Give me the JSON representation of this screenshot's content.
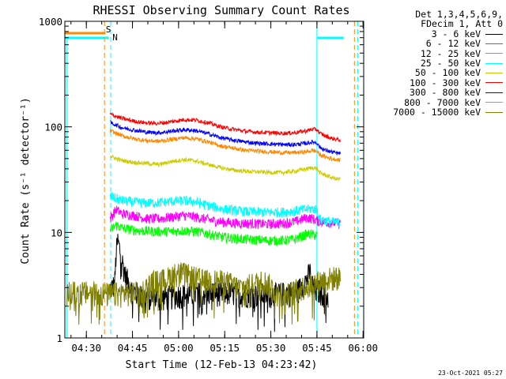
{
  "chart_data": {
    "type": "line",
    "title": "RHESSI Observing Summary Count Rates",
    "xlabel": "Start Time (12-Feb-13 04:23:42)",
    "ylabel": "Count Rate (s⁻¹ detector⁻¹)",
    "yscale": "log",
    "ylim": [
      1,
      1000
    ],
    "xlim_minutes": [
      -0.7,
      96.5
    ],
    "x_ticks": [
      {
        "label": "04:30",
        "min": 6.3
      },
      {
        "label": "04:45",
        "min": 21.3
      },
      {
        "label": "05:00",
        "min": 36.3
      },
      {
        "label": "05:15",
        "min": 51.3
      },
      {
        "label": "05:30",
        "min": 66.3
      },
      {
        "label": "05:45",
        "min": 81.3
      },
      {
        "label": "06:00",
        "min": 96.3
      }
    ],
    "y_ticks": [
      {
        "label": "1",
        "value": 1
      },
      {
        "label": "10",
        "value": 10
      },
      {
        "label": "100",
        "value": 100
      },
      {
        "label": "1000",
        "value": 1000
      }
    ],
    "legend_header": [
      "Det 1,3,4,5,6,9,",
      "FDecim 1, Att 0"
    ],
    "series": [
      {
        "name": "3 - 6 keV",
        "color": "#000000",
        "points": [
          [
            14,
            2.9
          ],
          [
            15.5,
            3.2
          ],
          [
            16,
            6.5
          ],
          [
            16.5,
            8.3
          ],
          [
            17.5,
            6.2
          ],
          [
            19,
            3.9
          ],
          [
            21,
            2.9
          ],
          [
            24,
            2.5
          ],
          [
            30,
            2.4
          ],
          [
            38,
            2.6
          ],
          [
            45,
            2.7
          ],
          [
            52,
            2.7
          ],
          [
            60,
            2.6
          ],
          [
            68,
            2.6
          ],
          [
            75,
            2.8
          ],
          [
            78,
            3.6
          ],
          [
            79,
            4.2
          ],
          [
            80.5,
            2.8
          ],
          [
            82,
            2.8
          ],
          [
            84,
            2.6
          ],
          [
            85,
            2.4
          ]
        ]
      },
      {
        "name": "6 - 12 keV",
        "color": "#ff00ff",
        "points": [
          [
            14,
            13.5
          ],
          [
            16,
            16.5
          ],
          [
            18,
            15
          ],
          [
            22,
            14.5
          ],
          [
            26,
            13.5
          ],
          [
            30,
            13.5
          ],
          [
            34,
            14
          ],
          [
            38,
            14.5
          ],
          [
            42,
            14
          ],
          [
            46,
            13.2
          ],
          [
            50,
            12.6
          ],
          [
            54,
            12.3
          ],
          [
            58,
            12.2
          ],
          [
            62,
            12.1
          ],
          [
            66,
            12
          ],
          [
            70,
            12.2
          ],
          [
            74,
            12.6
          ],
          [
            78,
            13.8
          ],
          [
            80,
            13.5
          ],
          [
            81.5,
            12.8
          ],
          [
            82,
            12.8
          ],
          [
            84,
            12.5
          ],
          [
            86,
            12.4
          ],
          [
            88,
            12.3
          ],
          [
            89,
            12.2
          ]
        ]
      },
      {
        "name": "12 - 25 keV",
        "color": "#00ff00",
        "points": [
          [
            14,
            10.5
          ],
          [
            16,
            11.8
          ],
          [
            18,
            11
          ],
          [
            22,
            10.5
          ],
          [
            26,
            10.3
          ],
          [
            30,
            10.2
          ],
          [
            34,
            10.2
          ],
          [
            38,
            10.4
          ],
          [
            42,
            10.2
          ],
          [
            46,
            9.7
          ],
          [
            50,
            9.1
          ],
          [
            54,
            8.8
          ],
          [
            58,
            8.6
          ],
          [
            62,
            8.5
          ],
          [
            66,
            8.4
          ],
          [
            70,
            8.4
          ],
          [
            74,
            8.6
          ],
          [
            78,
            9.6
          ],
          [
            80,
            9.6
          ],
          [
            81.5,
            9.3
          ]
        ]
      },
      {
        "name": "25 - 50 keV",
        "color": "#00ffff",
        "points": [
          [
            14,
            22
          ],
          [
            16,
            21
          ],
          [
            18,
            20
          ],
          [
            22,
            19.4
          ],
          [
            26,
            19
          ],
          [
            30,
            19.2
          ],
          [
            34,
            19.7
          ],
          [
            38,
            20
          ],
          [
            42,
            19.5
          ],
          [
            46,
            18
          ],
          [
            50,
            16.8
          ],
          [
            54,
            16.2
          ],
          [
            58,
            15.8
          ],
          [
            62,
            15.6
          ],
          [
            66,
            15.5
          ],
          [
            70,
            15.6
          ],
          [
            74,
            16
          ],
          [
            78,
            16.6
          ],
          [
            80,
            16.8
          ],
          [
            81.5,
            16.4
          ],
          [
            82,
            13.5
          ],
          [
            84,
            13
          ],
          [
            86,
            12.6
          ],
          [
            88,
            12.4
          ],
          [
            89,
            12.3
          ]
        ]
      },
      {
        "name": "50 - 100 keV",
        "color": "#cccc00",
        "points": [
          [
            14,
            53
          ],
          [
            16,
            50
          ],
          [
            18,
            48
          ],
          [
            22,
            46
          ],
          [
            26,
            45
          ],
          [
            30,
            44
          ],
          [
            34,
            47
          ],
          [
            38,
            49
          ],
          [
            42,
            47.5
          ],
          [
            46,
            44
          ],
          [
            50,
            41
          ],
          [
            54,
            39
          ],
          [
            58,
            38
          ],
          [
            62,
            37.5
          ],
          [
            66,
            37
          ],
          [
            70,
            37
          ],
          [
            74,
            38
          ],
          [
            78,
            40
          ],
          [
            80,
            41
          ],
          [
            81.5,
            40
          ],
          [
            82,
            37
          ],
          [
            84,
            35
          ],
          [
            86,
            33
          ],
          [
            88,
            32
          ],
          [
            89,
            32
          ]
        ]
      },
      {
        "name": "100 - 300 keV",
        "color": "#ff0000",
        "points": [
          [
            14,
            132
          ],
          [
            16,
            126
          ],
          [
            18,
            120
          ],
          [
            22,
            113
          ],
          [
            26,
            109
          ],
          [
            30,
            108
          ],
          [
            34,
            112
          ],
          [
            38,
            117
          ],
          [
            42,
            116
          ],
          [
            46,
            109
          ],
          [
            50,
            100
          ],
          [
            54,
            95
          ],
          [
            58,
            91
          ],
          [
            62,
            89
          ],
          [
            66,
            88
          ],
          [
            70,
            87
          ],
          [
            74,
            88
          ],
          [
            78,
            92
          ],
          [
            80,
            95
          ],
          [
            81.5,
            94
          ],
          [
            82,
            88
          ],
          [
            84,
            82
          ],
          [
            86,
            78
          ],
          [
            88,
            76
          ],
          [
            89,
            75
          ]
        ]
      },
      {
        "name": "300 - 800 keV",
        "color": "#0000ff",
        "points": [
          [
            14,
            110
          ],
          [
            16,
            104
          ],
          [
            18,
            98
          ],
          [
            22,
            93
          ],
          [
            26,
            89
          ],
          [
            30,
            88
          ],
          [
            34,
            91
          ],
          [
            38,
            94
          ],
          [
            42,
            92
          ],
          [
            46,
            86
          ],
          [
            50,
            79
          ],
          [
            54,
            75
          ],
          [
            58,
            72
          ],
          [
            62,
            70
          ],
          [
            66,
            69
          ],
          [
            70,
            68
          ],
          [
            74,
            68
          ],
          [
            78,
            70
          ],
          [
            80,
            72
          ],
          [
            81.5,
            70
          ],
          [
            82,
            65
          ],
          [
            84,
            60
          ],
          [
            86,
            58
          ],
          [
            88,
            56
          ],
          [
            89,
            56
          ]
        ]
      },
      {
        "name": "800 - 7000 keV",
        "color": "#ff8800",
        "points": [
          [
            14,
            92
          ],
          [
            16,
            87
          ],
          [
            18,
            82
          ],
          [
            22,
            77
          ],
          [
            26,
            74
          ],
          [
            30,
            73
          ],
          [
            34,
            76
          ],
          [
            38,
            79
          ],
          [
            42,
            77
          ],
          [
            46,
            72
          ],
          [
            50,
            66
          ],
          [
            54,
            63
          ],
          [
            58,
            60
          ],
          [
            62,
            59
          ],
          [
            66,
            58
          ],
          [
            70,
            57
          ],
          [
            74,
            57
          ],
          [
            78,
            58
          ],
          [
            80,
            60
          ],
          [
            81.5,
            58
          ],
          [
            82,
            55
          ],
          [
            84,
            52
          ],
          [
            86,
            50
          ],
          [
            88,
            49
          ],
          [
            89,
            48
          ]
        ]
      },
      {
        "name": "7000 - 15000 keV",
        "color": "#808000",
        "points": [
          [
            0,
            2.7
          ],
          [
            4,
            2.7
          ],
          [
            8,
            2.7
          ],
          [
            10,
            2.7
          ],
          [
            14,
            2.6
          ],
          [
            20,
            2.7
          ],
          [
            24,
            2.7
          ],
          [
            28,
            3.4
          ],
          [
            32,
            3.6
          ],
          [
            36,
            4.2
          ],
          [
            40,
            3.9
          ],
          [
            44,
            3.5
          ],
          [
            48,
            3.5
          ],
          [
            52,
            3.4
          ],
          [
            56,
            3.0
          ],
          [
            60,
            3.2
          ],
          [
            64,
            3.5
          ],
          [
            68,
            2.8
          ],
          [
            72,
            2.6
          ],
          [
            76,
            3.0
          ],
          [
            80,
            3.3
          ],
          [
            84,
            3.6
          ],
          [
            88,
            3.8
          ],
          [
            89,
            3.6
          ]
        ]
      }
    ],
    "annotations": [
      {
        "text": "S",
        "color": "#ff8800"
      },
      {
        "text": "N",
        "color": "#00ffff"
      }
    ],
    "timestamp": "23-Oct-2021 05:27"
  }
}
